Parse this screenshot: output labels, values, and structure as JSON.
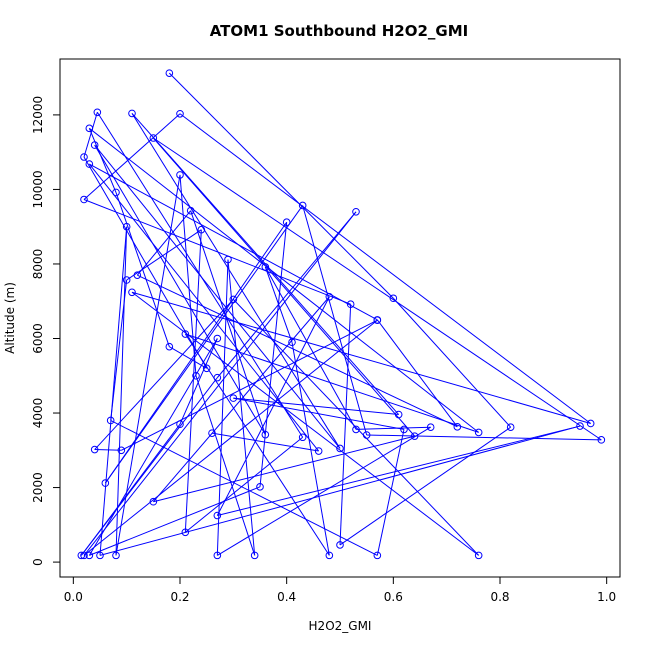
{
  "chart_data": {
    "type": "line",
    "title": "ATOM1 Southbound H2O2_GMI",
    "xlabel": "H2O2_GMI",
    "ylabel": "Altitude (m)",
    "xlim": [
      -0.025,
      1.025
    ],
    "ylim": [
      -400,
      13500
    ],
    "xticks": [
      0.0,
      0.2,
      0.4,
      0.6,
      0.8,
      1.0
    ],
    "xtick_labels": [
      "0.0",
      "0.2",
      "0.4",
      "0.6",
      "0.8",
      "1.0"
    ],
    "yticks": [
      0,
      2000,
      4000,
      6000,
      8000,
      10000,
      12000
    ],
    "ytick_labels": [
      "0",
      "2000",
      "4000",
      "6000",
      "8000",
      "10000",
      "12000"
    ],
    "grid": false,
    "line_color": "#0000ff",
    "marker": "open-circle",
    "points": [
      [
        0.18,
        13120
      ],
      [
        0.6,
        7080
      ],
      [
        0.82,
        3620
      ],
      [
        0.5,
        460
      ],
      [
        0.52,
        6920
      ],
      [
        0.02,
        9730
      ],
      [
        0.2,
        12030
      ],
      [
        0.97,
        3720
      ],
      [
        0.11,
        7240
      ],
      [
        0.76,
        180
      ],
      [
        0.3,
        7050
      ],
      [
        0.04,
        3020
      ],
      [
        0.09,
        3000
      ],
      [
        0.57,
        6490
      ],
      [
        0.02,
        180
      ],
      [
        0.53,
        9400
      ],
      [
        0.27,
        4950
      ],
      [
        0.015,
        180
      ],
      [
        0.2,
        3700
      ],
      [
        0.27,
        6000
      ],
      [
        0.03,
        180
      ],
      [
        0.35,
        2020
      ],
      [
        0.4,
        9120
      ],
      [
        0.06,
        2120
      ],
      [
        0.43,
        9570
      ],
      [
        0.55,
        3410
      ],
      [
        0.99,
        3280
      ],
      [
        0.15,
        11380
      ],
      [
        0.64,
        3380
      ],
      [
        0.15,
        1620
      ],
      [
        0.48,
        7120
      ],
      [
        0.27,
        1250
      ],
      [
        0.95,
        3650
      ],
      [
        0.05,
        180
      ],
      [
        0.1,
        9000
      ],
      [
        0.08,
        180
      ],
      [
        0.2,
        10390
      ],
      [
        0.23,
        5000
      ],
      [
        0.34,
        180
      ],
      [
        0.29,
        8120
      ],
      [
        0.27,
        180
      ],
      [
        0.67,
        3620
      ],
      [
        0.53,
        3560
      ],
      [
        0.36,
        7920
      ],
      [
        0.41,
        5900
      ],
      [
        0.48,
        180
      ],
      [
        0.21,
        6120
      ],
      [
        0.76,
        3480
      ],
      [
        0.03,
        11640
      ],
      [
        0.08,
        9920
      ],
      [
        0.18,
        5780
      ],
      [
        0.25,
        5200
      ],
      [
        0.02,
        10870
      ],
      [
        0.045,
        12070
      ],
      [
        0.43,
        3350
      ],
      [
        0.21,
        800
      ],
      [
        0.24,
        8920
      ],
      [
        0.1,
        7570
      ],
      [
        0.07,
        3800
      ],
      [
        0.57,
        180
      ],
      [
        0.62,
        3560
      ],
      [
        0.3,
        4400
      ],
      [
        0.61,
        3960
      ],
      [
        0.11,
        12040
      ],
      [
        0.5,
        3050
      ],
      [
        0.04,
        11190
      ],
      [
        0.36,
        3420
      ],
      [
        0.22,
        9430
      ],
      [
        0.12,
        7700
      ],
      [
        0.72,
        3630
      ],
      [
        0.57,
        6500
      ],
      [
        0.03,
        10680
      ],
      [
        0.46,
        2980
      ],
      [
        0.26,
        3460
      ]
    ]
  }
}
